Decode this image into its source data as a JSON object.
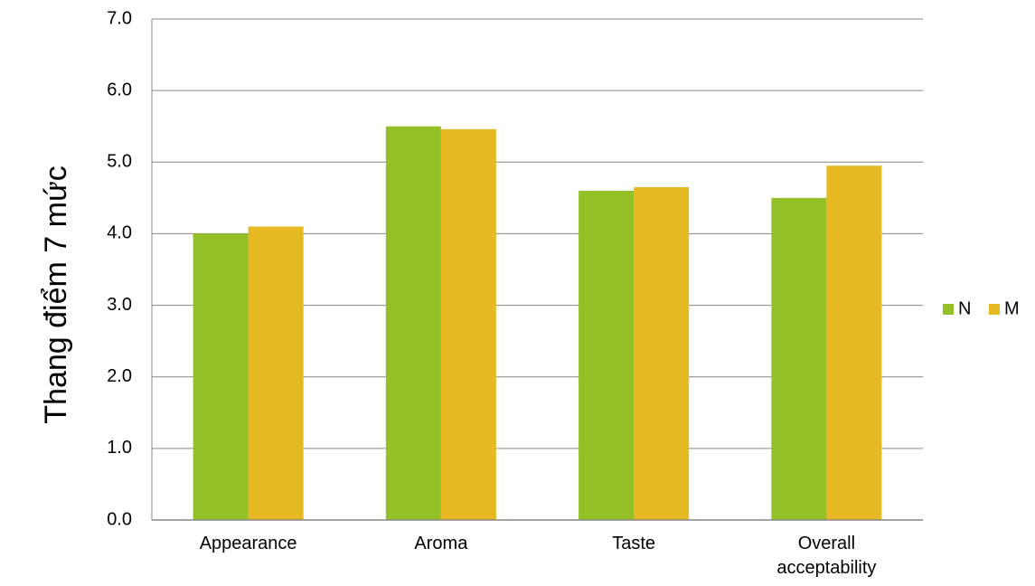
{
  "chart_data": {
    "type": "bar",
    "title": "",
    "xlabel": "",
    "ylabel": "Thang điểm 7 mức",
    "categories": [
      [
        "Appearance"
      ],
      [
        "Aroma"
      ],
      [
        "Taste"
      ],
      [
        "Overall",
        "acceptability"
      ]
    ],
    "series": [
      {
        "name": "N",
        "color": "#92c026",
        "values": [
          4.0,
          5.5,
          4.6,
          4.5
        ]
      },
      {
        "name": "M",
        "color": "#e6b822",
        "values": [
          4.1,
          5.46,
          4.65,
          4.95
        ]
      }
    ],
    "ylim": [
      0,
      7
    ],
    "yticks": [
      "0.0",
      "1.0",
      "2.0",
      "3.0",
      "4.0",
      "5.0",
      "6.0",
      "7.0"
    ],
    "grid": true,
    "legend_position": "right"
  }
}
